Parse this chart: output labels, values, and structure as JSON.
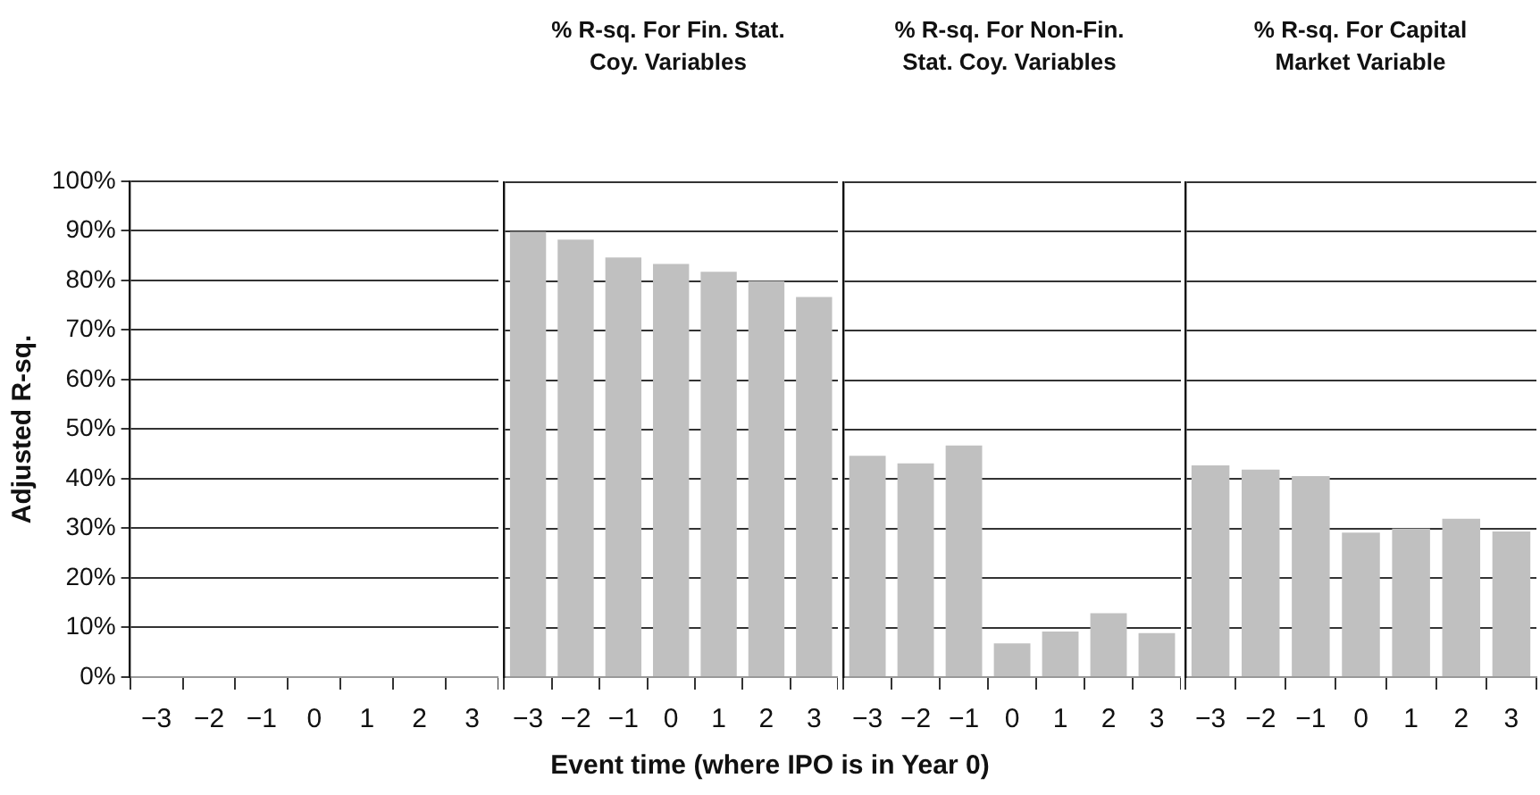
{
  "chart_data": [
    {
      "type": "bar",
      "ylabel": "Adjusted R-sq.",
      "categories": [
        "−3",
        "−2",
        "−1",
        "0",
        "1",
        "2",
        "3"
      ],
      "values": [
        null,
        null,
        null,
        null,
        null,
        null,
        null
      ],
      "color": "#c0c0c0",
      "ylim": [
        0,
        100
      ],
      "yticks": [
        {
          "value": 0,
          "label": "0%"
        },
        {
          "value": 10,
          "label": "10%"
        },
        {
          "value": 20,
          "label": "20%"
        },
        {
          "value": 30,
          "label": "30%"
        },
        {
          "value": 40,
          "label": "40%"
        },
        {
          "value": 50,
          "label": "50%"
        },
        {
          "value": 60,
          "label": "60%"
        },
        {
          "value": 70,
          "label": "70%"
        },
        {
          "value": 80,
          "label": "80%"
        },
        {
          "value": 90,
          "label": "90%"
        },
        {
          "value": 100,
          "label": "100%"
        }
      ],
      "grid": "y"
    },
    {
      "type": "bar",
      "title": "% R-sq. For Fin. Stat. Coy. Variables",
      "categories": [
        "−3",
        "−2",
        "−1",
        "0",
        "1",
        "2",
        "3"
      ],
      "values": [
        90,
        88.4,
        84.8,
        83.5,
        81.9,
        80,
        76.8
      ],
      "color": "#c0c0c0",
      "ylim": [
        0,
        100
      ],
      "yticks": [
        0,
        10,
        20,
        30,
        40,
        50,
        60,
        70,
        80,
        90,
        100
      ],
      "grid": "y",
      "tick_labels": "x"
    },
    {
      "type": "bar",
      "title": "% R-sq. For Non-Fin. Stat. Coy. Variables",
      "xlabel": "Event time (where IPO is in Year 0)",
      "categories": [
        "−3",
        "−2",
        "−1",
        "0",
        "1",
        "2",
        "3"
      ],
      "values": [
        44.7,
        43.2,
        46.8,
        6.8,
        9.2,
        12.9,
        8.9
      ],
      "color": "#c0c0c0",
      "ylim": [
        0,
        100
      ],
      "yticks": [
        0,
        10,
        20,
        30,
        40,
        50,
        60,
        70,
        80,
        90,
        100
      ],
      "grid": "y",
      "tick_labels": "x"
    },
    {
      "type": "bar",
      "title": "% R-sq. For Capital Market Variable",
      "categories": [
        "−3",
        "−2",
        "−1",
        "0",
        "1",
        "2",
        "3"
      ],
      "values": [
        42.8,
        41.9,
        40.6,
        29.2,
        30,
        32,
        29.4
      ],
      "color": "#c0c0c0",
      "ylim": [
        0,
        100
      ],
      "yticks": [
        0,
        10,
        20,
        30,
        40,
        50,
        60,
        70,
        80,
        90,
        100
      ],
      "grid": "y",
      "tick_labels": "x"
    }
  ]
}
